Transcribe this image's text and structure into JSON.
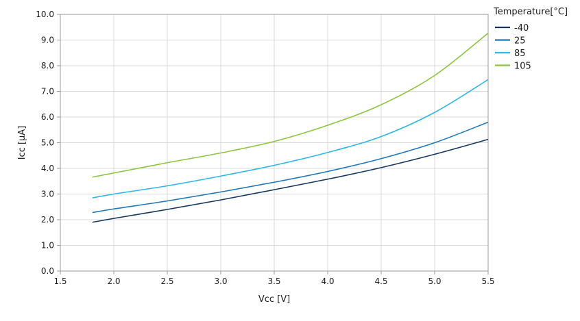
{
  "chart_data": {
    "type": "line",
    "xlabel": "Vcc [V]",
    "ylabel": "Icc [μA]",
    "xlim": [
      1.5,
      5.5
    ],
    "ylim": [
      0.0,
      10.0
    ],
    "xticks": [
      "1.5",
      "2.0",
      "2.5",
      "3.0",
      "3.5",
      "4.0",
      "4.5",
      "5.0",
      "5.5"
    ],
    "yticks": [
      "0.0",
      "1.0",
      "2.0",
      "3.0",
      "4.0",
      "5.0",
      "6.0",
      "7.0",
      "8.0",
      "9.0",
      "10.0"
    ],
    "grid": true,
    "legend": {
      "title": "Temperature[°C]",
      "position": "top-right"
    },
    "x": [
      1.8,
      2.0,
      2.5,
      3.0,
      3.5,
      4.0,
      4.5,
      5.0,
      5.5
    ],
    "series": [
      {
        "name": "-40",
        "color": "#14365e",
        "values": [
          1.9,
          2.05,
          2.4,
          2.77,
          3.17,
          3.58,
          4.03,
          4.55,
          5.13
        ]
      },
      {
        "name": "25",
        "color": "#1f77b8",
        "values": [
          2.28,
          2.42,
          2.73,
          3.08,
          3.46,
          3.88,
          4.38,
          5.0,
          5.8
        ]
      },
      {
        "name": "85",
        "color": "#2ab8e6",
        "values": [
          2.85,
          3.0,
          3.32,
          3.7,
          4.12,
          4.62,
          5.24,
          6.18,
          7.46
        ]
      },
      {
        "name": "105",
        "color": "#8cc63e",
        "values": [
          3.66,
          3.82,
          4.22,
          4.6,
          5.05,
          5.68,
          6.48,
          7.62,
          9.27
        ]
      }
    ]
  }
}
